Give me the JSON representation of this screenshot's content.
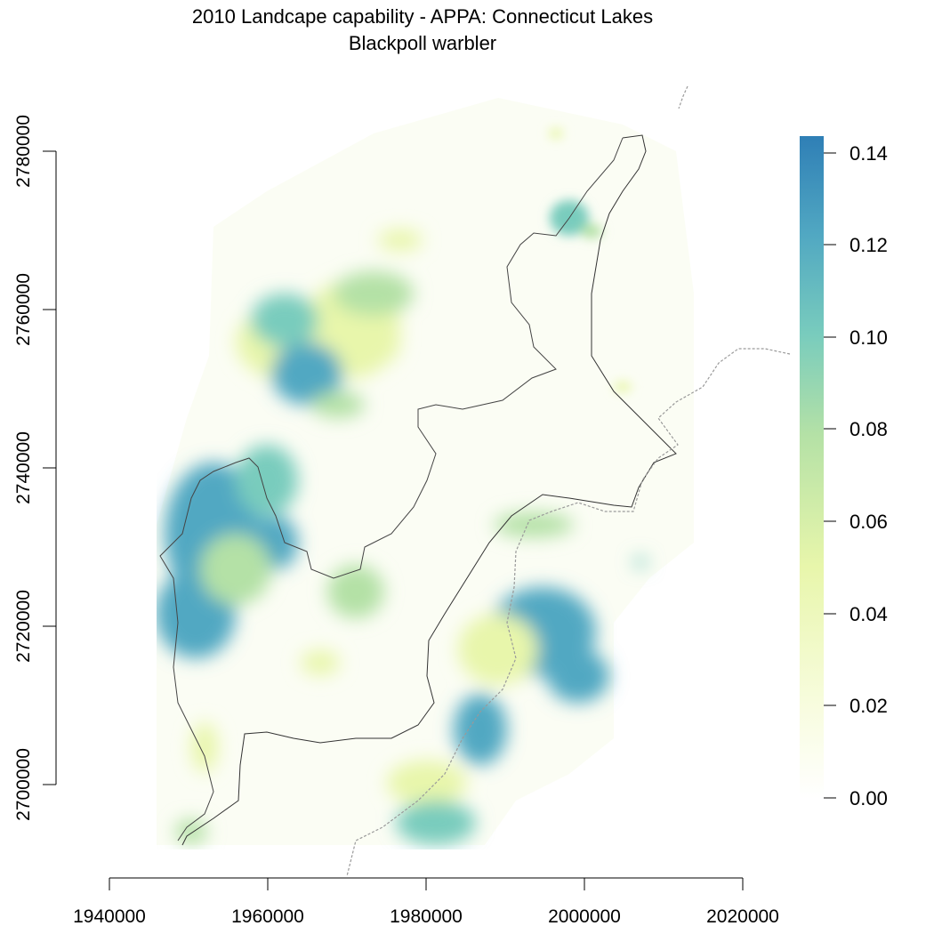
{
  "title": {
    "line1": "2010 Landcape capability - APPA: Connecticut Lakes",
    "line2": "Blackpoll warbler"
  },
  "x_axis": {
    "ticks": [
      "1940000",
      "1960000",
      "1980000",
      "2000000",
      "2020000"
    ]
  },
  "y_axis": {
    "ticks": [
      "2700000",
      "2720000",
      "2740000",
      "2760000",
      "2780000"
    ]
  },
  "legend": {
    "labels": [
      "0.14",
      "0.12",
      "0.10",
      "0.08",
      "0.06",
      "0.04",
      "0.02",
      "0.00"
    ],
    "colors": [
      "#ffffff",
      "#f7fcdc",
      "#e8f6ab",
      "#b4e1a6",
      "#79ccbd",
      "#51a8c2",
      "#2f7fb6"
    ]
  },
  "map": {
    "subject": "Blackpoll warbler landscape capability raster",
    "value_range": [
      0.0,
      0.14
    ]
  }
}
